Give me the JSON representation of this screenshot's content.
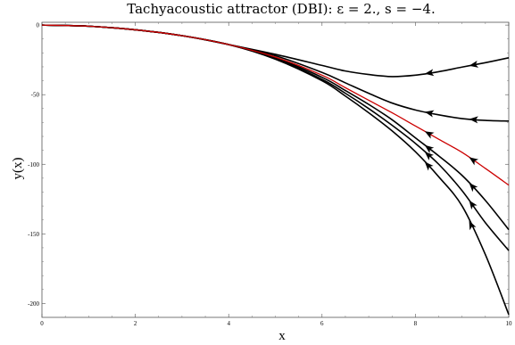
{
  "chart_data": {
    "type": "line",
    "title": "Tachyacoustic attractor (DBI): ε = 2., s = −4.",
    "xlabel": "x",
    "ylabel": "y(x)",
    "xlim": [
      0,
      10
    ],
    "ylim": [
      -210,
      2
    ],
    "x_ticks": [
      0,
      2,
      4,
      6,
      8,
      10
    ],
    "y_ticks": [
      0,
      -50,
      -100,
      -150,
      -200
    ],
    "x_tick_labels": [
      "0",
      "2",
      "4",
      "6",
      "8",
      "10"
    ],
    "y_tick_labels": [
      "0",
      "-50",
      "-100",
      "-150",
      "-200"
    ],
    "grid": false,
    "colors": {
      "trajectory": "#000000",
      "attractor": "#cc0000"
    },
    "series": [
      {
        "role": "trajectory",
        "x": [
          0,
          1,
          2,
          3,
          4,
          5,
          6,
          6.5,
          7,
          7.5,
          8,
          8.5,
          9,
          9.5,
          10
        ],
        "y": [
          0,
          -0.8,
          -3.4,
          -7.6,
          -14,
          -21,
          -29,
          -33,
          -35.5,
          -37,
          -36,
          -33.5,
          -30.2,
          -27,
          -23.5
        ],
        "arrows_at_x": [
          8.2,
          9.15
        ]
      },
      {
        "role": "trajectory",
        "x": [
          0,
          1,
          2,
          3,
          4,
          5,
          6,
          6.5,
          7,
          7.5,
          8,
          8.5,
          9,
          9.5,
          10
        ],
        "y": [
          0,
          -0.8,
          -3.4,
          -7.6,
          -14,
          -22,
          -34,
          -41.5,
          -49,
          -56,
          -61,
          -64.5,
          -67.2,
          -68.5,
          -69
        ],
        "arrows_at_x": [
          8.2,
          9.15
        ]
      },
      {
        "role": "attractor",
        "x": [
          0,
          1,
          2,
          3,
          4,
          5,
          6,
          6.5,
          7,
          7.5,
          8,
          8.5,
          9,
          9.5,
          10
        ],
        "y": [
          0,
          -0.8,
          -3.4,
          -7.6,
          -14,
          -23,
          -36,
          -45,
          -54,
          -63,
          -72.5,
          -82,
          -91.5,
          -103,
          -115
        ],
        "arrows_at_x": [
          8.2,
          9.15
        ]
      },
      {
        "role": "trajectory",
        "x": [
          0,
          1,
          2,
          3,
          4,
          5,
          6,
          6.5,
          7,
          7.5,
          8,
          8.5,
          9,
          9.5,
          10
        ],
        "y": [
          0,
          -0.8,
          -3.4,
          -7.6,
          -14,
          -23.5,
          -37.5,
          -47,
          -57,
          -68,
          -81,
          -94,
          -108,
          -126,
          -147
        ],
        "arrows_at_x": [
          8.2,
          9.15
        ]
      },
      {
        "role": "trajectory",
        "x": [
          0,
          1,
          2,
          3,
          4,
          5,
          6,
          6.5,
          7,
          7.5,
          8,
          8.5,
          9,
          9.5,
          10
        ],
        "y": [
          0,
          -0.8,
          -3.4,
          -7.6,
          -14,
          -24,
          -39,
          -49,
          -60,
          -72,
          -85,
          -100,
          -119,
          -142,
          -162
        ],
        "arrows_at_x": [
          8.2,
          9.15
        ]
      },
      {
        "role": "trajectory",
        "x": [
          0,
          1,
          2,
          3,
          4,
          5,
          6,
          6.5,
          7,
          7.5,
          8,
          8.5,
          9,
          9.5,
          10
        ],
        "y": [
          0,
          -0.8,
          -3.4,
          -7.6,
          -14,
          -24.5,
          -40,
          -51,
          -63,
          -76,
          -91,
          -109,
          -130,
          -165,
          -208
        ],
        "arrows_at_x": [
          8.2,
          9.15
        ]
      }
    ]
  }
}
